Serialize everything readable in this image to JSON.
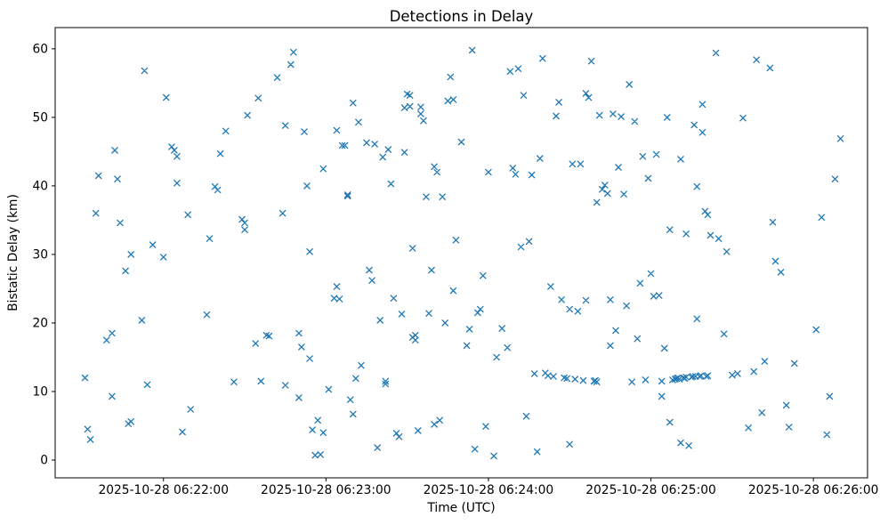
{
  "chart_data": {
    "type": "scatter",
    "title": "Detections in Delay",
    "xlabel": "Time (UTC)",
    "ylabel": "Bistatic Delay (km)",
    "marker": "x",
    "marker_color": "#1f77b4",
    "grid": false,
    "legend": null,
    "x_axis": {
      "unit": "seconds since 2025-10-28 06:21:20 UTC",
      "domain": [
        0,
        300
      ],
      "ticks": [
        {
          "s": 40,
          "label": "2025-10-28 06:22:00"
        },
        {
          "s": 100,
          "label": "2025-10-28 06:23:00"
        },
        {
          "s": 160,
          "label": "2025-10-28 06:24:00"
        },
        {
          "s": 220,
          "label": "2025-10-28 06:25:00"
        },
        {
          "s": 280,
          "label": "2025-10-28 06:26:00"
        }
      ]
    },
    "y_axis": {
      "domain": [
        -2.6,
        63.1
      ],
      "ticks": [
        0,
        10,
        20,
        30,
        40,
        50,
        60
      ]
    },
    "points": [
      [
        11,
        12
      ],
      [
        12,
        4.5
      ],
      [
        13,
        3
      ],
      [
        15,
        36
      ],
      [
        16,
        41.5
      ],
      [
        19,
        17.5
      ],
      [
        21,
        9.3
      ],
      [
        21,
        18.5
      ],
      [
        22,
        45.2
      ],
      [
        23,
        41
      ],
      [
        24,
        34.6
      ],
      [
        26,
        27.6
      ],
      [
        27,
        5.3
      ],
      [
        28,
        5.6
      ],
      [
        28,
        30
      ],
      [
        32,
        20.4
      ],
      [
        33,
        56.8
      ],
      [
        34,
        11
      ],
      [
        36,
        31.4
      ],
      [
        40,
        29.6
      ],
      [
        41,
        52.9
      ],
      [
        43,
        45.7
      ],
      [
        44,
        45.2
      ],
      [
        45,
        40.4
      ],
      [
        45,
        44.3
      ],
      [
        47,
        4.1
      ],
      [
        49,
        35.8
      ],
      [
        50,
        7.4
      ],
      [
        56,
        21.2
      ],
      [
        57,
        32.3
      ],
      [
        59,
        39.9
      ],
      [
        60,
        39.4
      ],
      [
        61,
        44.7
      ],
      [
        63,
        48
      ],
      [
        66,
        11.4
      ],
      [
        69,
        35.1
      ],
      [
        70,
        34.6
      ],
      [
        70,
        33.6
      ],
      [
        71,
        50.3
      ],
      [
        74,
        17
      ],
      [
        75,
        52.8
      ],
      [
        76,
        11.5
      ],
      [
        78,
        18.2
      ],
      [
        79,
        18.1
      ],
      [
        82,
        55.8
      ],
      [
        84,
        36
      ],
      [
        85,
        48.8
      ],
      [
        85,
        10.9
      ],
      [
        87,
        57.7
      ],
      [
        88,
        59.5
      ],
      [
        90,
        18.5
      ],
      [
        90,
        9.1
      ],
      [
        91,
        16.5
      ],
      [
        92,
        47.9
      ],
      [
        93,
        40
      ],
      [
        94,
        30.4
      ],
      [
        94,
        14.8
      ],
      [
        95,
        4.4
      ],
      [
        96,
        0.7
      ],
      [
        97,
        5.8
      ],
      [
        98,
        0.8
      ],
      [
        99,
        4
      ],
      [
        99,
        42.5
      ],
      [
        101,
        10.3
      ],
      [
        103,
        23.6
      ],
      [
        104,
        25.3
      ],
      [
        104,
        48.1
      ],
      [
        105,
        23.5
      ],
      [
        106,
        45.9
      ],
      [
        107,
        45.9
      ],
      [
        108,
        38.7
      ],
      [
        108,
        38.5
      ],
      [
        109,
        8.8
      ],
      [
        110,
        6.7
      ],
      [
        110,
        52.1
      ],
      [
        111,
        11.9
      ],
      [
        112,
        49.3
      ],
      [
        113,
        13.8
      ],
      [
        115,
        46.3
      ],
      [
        116,
        27.7
      ],
      [
        117,
        26.2
      ],
      [
        118,
        46.1
      ],
      [
        119,
        1.8
      ],
      [
        120,
        20.4
      ],
      [
        121,
        44.2
      ],
      [
        122,
        11.5
      ],
      [
        122,
        11.1
      ],
      [
        123,
        45.3
      ],
      [
        124,
        40.3
      ],
      [
        125,
        23.6
      ],
      [
        126,
        3.9
      ],
      [
        127,
        3.4
      ],
      [
        128,
        21.3
      ],
      [
        129,
        44.9
      ],
      [
        129,
        51.4
      ],
      [
        130,
        53.4
      ],
      [
        131,
        53.2
      ],
      [
        131,
        51.6
      ],
      [
        132,
        30.9
      ],
      [
        132,
        17.9
      ],
      [
        133,
        17.5
      ],
      [
        133,
        18.2
      ],
      [
        134,
        4.3
      ],
      [
        135,
        50.5
      ],
      [
        135,
        51.5
      ],
      [
        136,
        49.5
      ],
      [
        137,
        38.4
      ],
      [
        138,
        21.4
      ],
      [
        139,
        27.7
      ],
      [
        140,
        5.2
      ],
      [
        140,
        42.8
      ],
      [
        141,
        42
      ],
      [
        142,
        5.8
      ],
      [
        143,
        38.4
      ],
      [
        144,
        20
      ],
      [
        145,
        52.4
      ],
      [
        146,
        55.9
      ],
      [
        147,
        24.7
      ],
      [
        147,
        52.6
      ],
      [
        148,
        32.1
      ],
      [
        150,
        46.4
      ],
      [
        152,
        16.7
      ],
      [
        153,
        19.1
      ],
      [
        154,
        59.8
      ],
      [
        155,
        1.6
      ],
      [
        156,
        21.5
      ],
      [
        157,
        22
      ],
      [
        158,
        26.9
      ],
      [
        159,
        4.9
      ],
      [
        160,
        42
      ],
      [
        162,
        0.6
      ],
      [
        163,
        15
      ],
      [
        165,
        19.2
      ],
      [
        167,
        16.4
      ],
      [
        168,
        56.7
      ],
      [
        169,
        42.6
      ],
      [
        170,
        41.7
      ],
      [
        171,
        57.1
      ],
      [
        172,
        31.1
      ],
      [
        173,
        53.2
      ],
      [
        174,
        6.4
      ],
      [
        175,
        31.9
      ],
      [
        176,
        41.6
      ],
      [
        177,
        12.6
      ],
      [
        178,
        1.2
      ],
      [
        179,
        44
      ],
      [
        180,
        58.6
      ],
      [
        181,
        12.7
      ],
      [
        182,
        12.3
      ],
      [
        183,
        25.3
      ],
      [
        184,
        12.2
      ],
      [
        185,
        50.2
      ],
      [
        186,
        52.2
      ],
      [
        187,
        23.4
      ],
      [
        188,
        12
      ],
      [
        189,
        11.9
      ],
      [
        190,
        22
      ],
      [
        190,
        2.3
      ],
      [
        191,
        43.2
      ],
      [
        192,
        11.8
      ],
      [
        193,
        21.7
      ],
      [
        194,
        43.2
      ],
      [
        195,
        11.6
      ],
      [
        196,
        23.3
      ],
      [
        196,
        53.5
      ],
      [
        197,
        52.9
      ],
      [
        198,
        58.2
      ],
      [
        199,
        11.5
      ],
      [
        199.5,
        11.6
      ],
      [
        200,
        11.4
      ],
      [
        200,
        37.6
      ],
      [
        201,
        50.3
      ],
      [
        202,
        39.5
      ],
      [
        203,
        40.1
      ],
      [
        204,
        38.9
      ],
      [
        205,
        23.4
      ],
      [
        205,
        16.7
      ],
      [
        206,
        50.5
      ],
      [
        207,
        18.9
      ],
      [
        208,
        42.7
      ],
      [
        209,
        50.1
      ],
      [
        210,
        38.8
      ],
      [
        211,
        22.5
      ],
      [
        212,
        54.8
      ],
      [
        213,
        11.4
      ],
      [
        214,
        49.4
      ],
      [
        215,
        17.7
      ],
      [
        216,
        25.8
      ],
      [
        217,
        44.3
      ],
      [
        218,
        11.7
      ],
      [
        219,
        41.1
      ],
      [
        220,
        27.2
      ],
      [
        221,
        23.9
      ],
      [
        222,
        44.6
      ],
      [
        223,
        24
      ],
      [
        224,
        11.5
      ],
      [
        224,
        9.3
      ],
      [
        225,
        16.3
      ],
      [
        226,
        50
      ],
      [
        227,
        33.6
      ],
      [
        227,
        5.5
      ],
      [
        228,
        11.7
      ],
      [
        229,
        11.8
      ],
      [
        229.5,
        11.9
      ],
      [
        230,
        12
      ],
      [
        230.5,
        11.8
      ],
      [
        231,
        2.5
      ],
      [
        231,
        43.9
      ],
      [
        232,
        12
      ],
      [
        232.5,
        11.9
      ],
      [
        233,
        12.1
      ],
      [
        233,
        33
      ],
      [
        234,
        2.1
      ],
      [
        235,
        12.1
      ],
      [
        235.5,
        12.2
      ],
      [
        236,
        48.9
      ],
      [
        236.5,
        12.2
      ],
      [
        237,
        39.9
      ],
      [
        237,
        20.6
      ],
      [
        238,
        12.2
      ],
      [
        238.5,
        12.3
      ],
      [
        239,
        47.8
      ],
      [
        239,
        51.9
      ],
      [
        240,
        36.3
      ],
      [
        240.5,
        12.2
      ],
      [
        241,
        35.8
      ],
      [
        241,
        12.3
      ],
      [
        242,
        32.8
      ],
      [
        244,
        59.4
      ],
      [
        245,
        32.3
      ],
      [
        247,
        18.4
      ],
      [
        248,
        30.4
      ],
      [
        250,
        12.4
      ],
      [
        252,
        12.6
      ],
      [
        254,
        49.9
      ],
      [
        256,
        4.7
      ],
      [
        258,
        12.9
      ],
      [
        259,
        58.4
      ],
      [
        261,
        6.9
      ],
      [
        262,
        14.4
      ],
      [
        264,
        57.2
      ],
      [
        265,
        34.7
      ],
      [
        266,
        29
      ],
      [
        268,
        27.4
      ],
      [
        270,
        8
      ],
      [
        271,
        4.8
      ],
      [
        273,
        14.1
      ],
      [
        281,
        19
      ],
      [
        283,
        35.4
      ],
      [
        285,
        3.7
      ],
      [
        286,
        9.3
      ],
      [
        288,
        41
      ],
      [
        290,
        46.9
      ]
    ]
  }
}
